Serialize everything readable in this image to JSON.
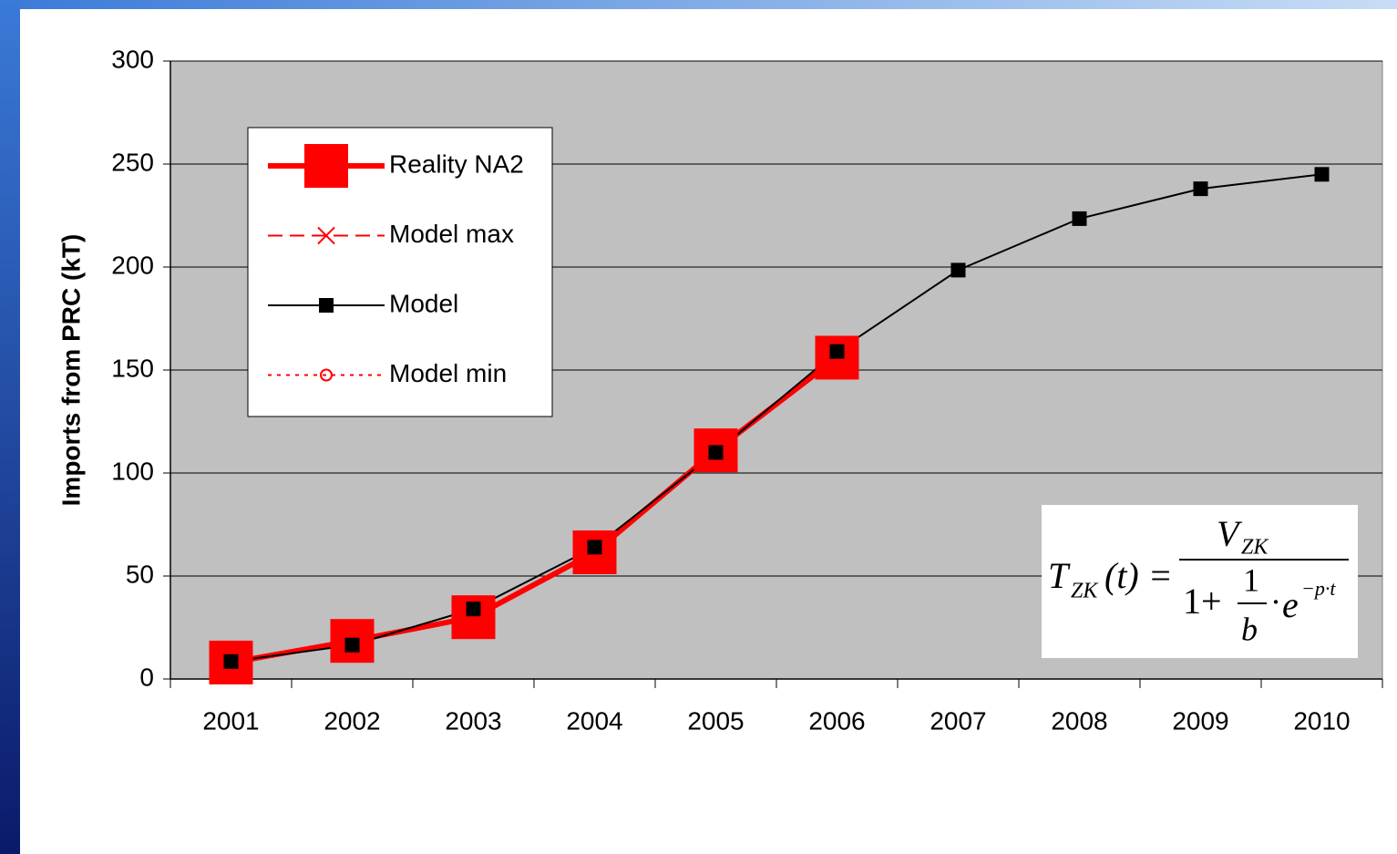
{
  "chart_data": {
    "type": "line",
    "y_label": "Imports from PRC (kT)",
    "categories": [
      "2001",
      "2002",
      "2003",
      "2004",
      "2005",
      "2006",
      "2007",
      "2008",
      "2009",
      "2010"
    ],
    "series": [
      {
        "name": "Reality NA2",
        "color": "#ff0000",
        "line_width": 6,
        "line_style": "solid",
        "marker": "square-big",
        "values": [
          8,
          18.5,
          30,
          61.5,
          111,
          156,
          null,
          null,
          null,
          null
        ]
      },
      {
        "name": "Model max",
        "color": "#ff0000",
        "line_width": 2,
        "line_style": "dashed",
        "marker": "x",
        "values": [
          null,
          null,
          null,
          null,
          null,
          null,
          null,
          null,
          null,
          null
        ]
      },
      {
        "name": "Model",
        "color": "#000000",
        "line_width": 2,
        "line_style": "solid",
        "marker": "square",
        "values": [
          8.5,
          16.5,
          34,
          64,
          110,
          159,
          198.5,
          223.5,
          238,
          245
        ]
      },
      {
        "name": "Model min",
        "color": "#ff0000",
        "line_width": 2,
        "line_style": "dotted",
        "marker": "circle",
        "values": [
          null,
          null,
          null,
          null,
          null,
          null,
          null,
          null,
          null,
          null
        ]
      }
    ],
    "ylim": [
      0,
      300
    ],
    "yticks": [
      0,
      50,
      100,
      150,
      200,
      250,
      300
    ],
    "grid": true,
    "plot_background": "#c0c0c0",
    "legend": "upper left",
    "formula": {
      "lhs": "T",
      "lhs_sub": "ZK",
      "arg": "(t) =",
      "num": "V",
      "num_sub": "ZK",
      "den_one": "1+",
      "frac_num": "1",
      "frac_den": "b",
      "dot": "·",
      "e": "e",
      "exp": "−p·t"
    }
  }
}
